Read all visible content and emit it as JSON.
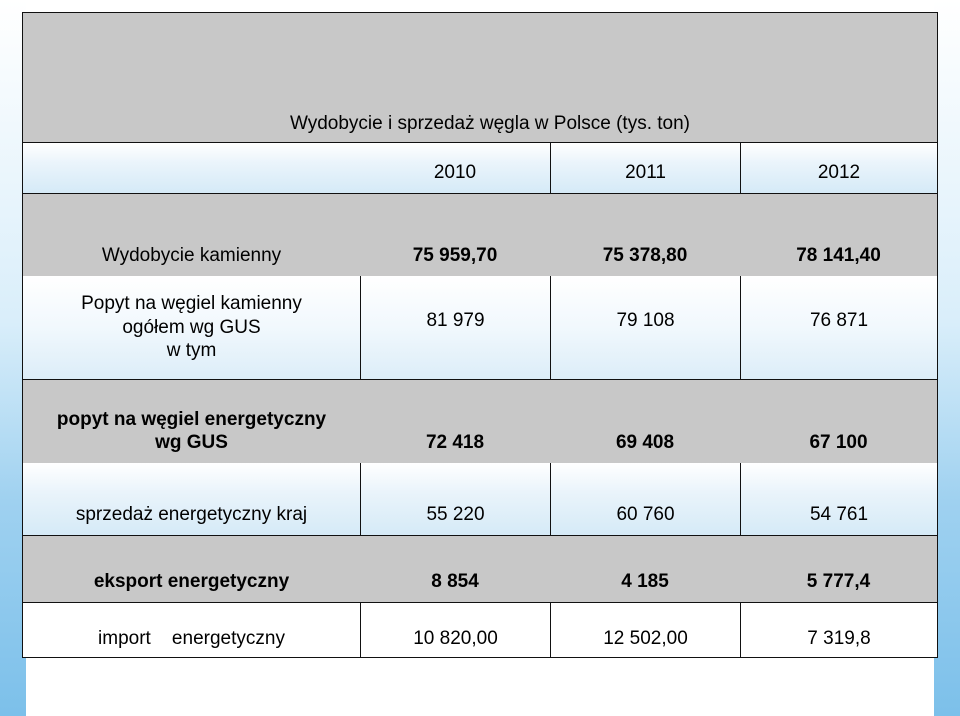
{
  "title": "Wydobycie i sprzedaż węgla w Polsce (tys. ton)",
  "years": [
    "2010",
    "2011",
    "2012"
  ],
  "rows": [
    {
      "label": "Wydobycie kamienny",
      "values": [
        "75 959,70",
        "75 378,80",
        "78 141,40"
      ]
    },
    {
      "label_lines": [
        "Popyt na węgiel kamienny",
        "ogółem wg GUS",
        "w tym"
      ],
      "values": [
        "81 979",
        "79 108",
        "76 871"
      ]
    },
    {
      "label_lines": [
        "popyt na węgiel energetyczny",
        "wg GUS"
      ],
      "values": [
        "72 418",
        "69 408",
        "67 100"
      ]
    },
    {
      "label": "sprzedaż energetyczny kraj",
      "values": [
        "55 220",
        "60 760",
        "54 761"
      ]
    },
    {
      "label": "eksport energetyczny",
      "values": [
        "8 854",
        "4 185",
        "5 777,4"
      ]
    },
    {
      "label": "import    energetyczny",
      "values": [
        "10 820,00",
        "12 502,00",
        "7 319,8"
      ]
    }
  ],
  "colors": {
    "header_gray": "#c8c8c8",
    "edge_blue": "#7cc0ea",
    "border": "#111111"
  }
}
